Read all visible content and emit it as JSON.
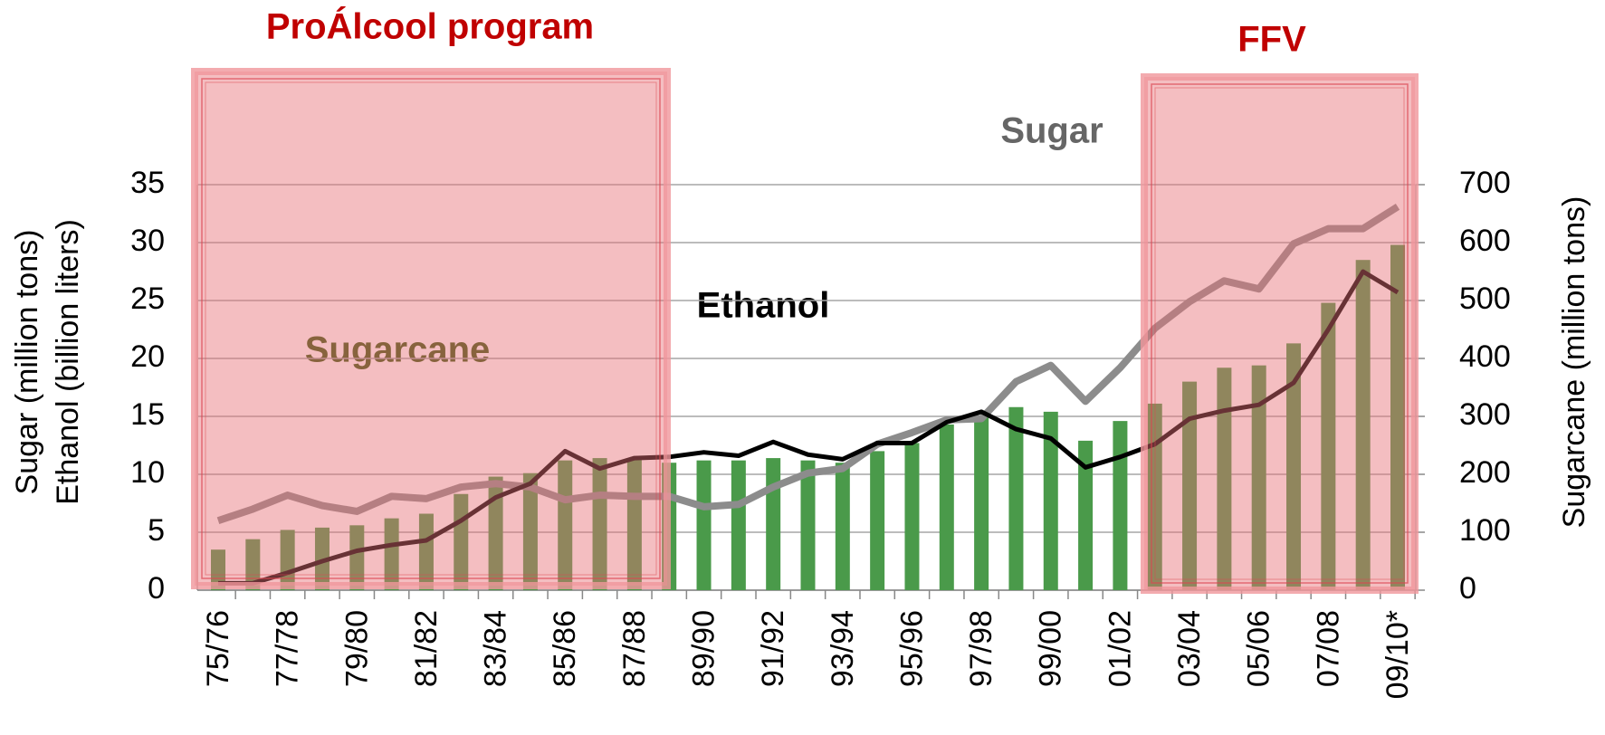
{
  "chart_data": {
    "type": "bar-line",
    "annotations": [
      "ProÁlcool program",
      "FFV",
      "Sugar",
      "Ethanol",
      "Sugarcane"
    ],
    "ylabel": [
      "Sugar (million tons)",
      "Ethanol (billion liters)"
    ],
    "y2label": "Sugarcane (million tons)",
    "categories": [
      "75/76",
      null,
      "77/78",
      null,
      "79/80",
      null,
      "81/82",
      null,
      "83/84",
      null,
      "85/86",
      null,
      "87/88",
      null,
      "89/90",
      null,
      "91/92",
      null,
      "93/94",
      null,
      "95/96",
      null,
      "97/98",
      null,
      "99/00",
      null,
      "01/02",
      null,
      "03/04",
      null,
      "05/06",
      null,
      "07/08",
      null,
      "09/10*"
    ],
    "series": [
      {
        "name": "Sugarcane",
        "kind": "bar",
        "axis": "y2",
        "color": "#4a9a4a",
        "values": [
          70,
          88,
          104,
          108,
          112,
          124,
          132,
          166,
          196,
          202,
          224,
          228,
          226,
          220,
          224,
          224,
          228,
          224,
          220,
          240,
          254,
          286,
          302,
          316,
          308,
          258,
          292,
          322,
          360,
          384,
          388,
          426,
          496,
          570,
          596
        ]
      },
      {
        "name": "Sugar",
        "kind": "line",
        "color": "#8c8c8c",
        "values": [
          6.0,
          7.0,
          8.2,
          7.3,
          6.8,
          8.1,
          7.9,
          8.9,
          9.2,
          8.9,
          7.8,
          8.2,
          8.1,
          8.1,
          7.2,
          7.4,
          8.9,
          10.1,
          10.5,
          12.6,
          13.6,
          14.7,
          14.8,
          18.0,
          19.4,
          16.3,
          19.2,
          22.6,
          24.9,
          26.7,
          26.0,
          29.9,
          31.2,
          31.2,
          33.1
        ]
      },
      {
        "name": "Ethanol",
        "kind": "line",
        "color": "#000000",
        "values": [
          0.6,
          0.6,
          1.5,
          2.5,
          3.4,
          3.9,
          4.3,
          6.0,
          8.0,
          9.2,
          12.0,
          10.5,
          11.4,
          11.5,
          11.9,
          11.6,
          12.8,
          11.7,
          11.3,
          12.7,
          12.7,
          14.5,
          15.4,
          13.9,
          13.1,
          10.6,
          11.5,
          12.6,
          14.8,
          15.5,
          16.0,
          17.9,
          22.5,
          27.5,
          25.7
        ]
      }
    ],
    "ylim": [
      0,
      35
    ],
    "yticks": [
      0,
      5,
      10,
      15,
      20,
      25,
      30,
      35
    ],
    "y2lim": [
      0,
      700
    ],
    "y2ticks": [
      0,
      100,
      200,
      300,
      400,
      500,
      600,
      700
    ],
    "grid": true
  }
}
